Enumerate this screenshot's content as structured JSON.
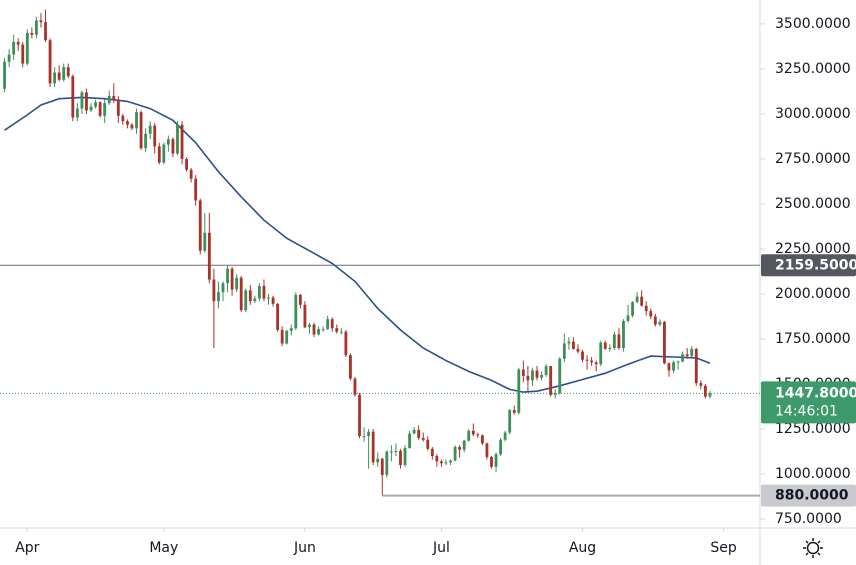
{
  "chart_data": {
    "type": "candlestick",
    "xlim": [
      -1,
      166
    ],
    "ylim": [
      700,
      3633
    ],
    "xticks": [
      {
        "value": 5,
        "label": "Apr"
      },
      {
        "value": 35,
        "label": "May"
      },
      {
        "value": 66,
        "label": "Jun"
      },
      {
        "value": 96,
        "label": "Jul"
      },
      {
        "value": 127,
        "label": "Aug"
      },
      {
        "value": 158,
        "label": "Sep"
      }
    ],
    "yticks": [
      {
        "value": 750,
        "label": "750.0000"
      },
      {
        "value": 1000,
        "label": "1000.0000"
      },
      {
        "value": 1250,
        "label": "1250.0000"
      },
      {
        "value": 1500,
        "label": "1500.0000"
      },
      {
        "value": 1750,
        "label": "1750.0000"
      },
      {
        "value": 2000,
        "label": "2000.0000"
      },
      {
        "value": 2250,
        "label": "2250.0000"
      },
      {
        "value": 2500,
        "label": "2500.0000"
      },
      {
        "value": 2750,
        "label": "2750.0000"
      },
      {
        "value": 3000,
        "label": "3000.0000"
      },
      {
        "value": 3250,
        "label": "3250.0000"
      },
      {
        "value": 3500,
        "label": "3500.0000"
      }
    ],
    "up_color": "#3d8f57",
    "down_color": "#a8322c",
    "open": [
      3140,
      3290,
      3330,
      3400,
      3385,
      3280,
      3450,
      3440,
      3520,
      3510,
      3410,
      3170,
      3230,
      3190,
      3260,
      3210,
      2980,
      3030,
      3120,
      3020,
      3040,
      3065,
      2990,
      3060,
      3100,
      3080,
      2990,
      2960,
      2940,
      2920,
      3010,
      2810,
      2890,
      2935,
      2820,
      2730,
      2830,
      2860,
      2780,
      2940,
      2750,
      2690,
      2640,
      2520,
      2240,
      2340,
      2080,
      1960,
      2010,
      2060,
      2140,
      2025,
      2090,
      1910,
      2020,
      1960,
      1975,
      2045,
      1975,
      1980,
      1945,
      1800,
      1725,
      1795,
      1810,
      1995,
      1940,
      1815,
      1830,
      1775,
      1805,
      1805,
      1860,
      1810,
      1790,
      1790,
      1660,
      1530,
      1440,
      1210,
      1210,
      1235,
      1065,
      1085,
      995,
      1125,
      1125,
      1128,
      1050,
      1145,
      1225,
      1245,
      1200,
      1190,
      1140,
      1100,
      1070,
      1060,
      1065,
      1075,
      1150,
      1135,
      1185,
      1240,
      1220,
      1215,
      1170,
      1095,
      1040,
      1110,
      1190,
      1230,
      1355,
      1340,
      1580,
      1545,
      1520,
      1575,
      1535,
      1550,
      1600,
      1440,
      1450,
      1640,
      1725,
      1735,
      1695,
      1680,
      1635,
      1630,
      1620,
      1610,
      1730,
      1695,
      1700,
      1775,
      1700,
      1850,
      1880,
      1955,
      1985,
      1935,
      1905,
      1875,
      1830,
      1845,
      1615,
      1575,
      1620,
      1625,
      1665,
      1655,
      1695,
      1505,
      1490,
      1430
    ],
    "high": [
      3310,
      3360,
      3440,
      3420,
      3400,
      3470,
      3480,
      3540,
      3560,
      3580,
      3420,
      3260,
      3270,
      3280,
      3280,
      3220,
      3060,
      3130,
      3140,
      3060,
      3080,
      3070,
      3080,
      3130,
      3170,
      3100,
      3000,
      2970,
      2950,
      3030,
      3020,
      2920,
      2960,
      2950,
      2840,
      2840,
      2880,
      2870,
      2960,
      2960,
      2760,
      2700,
      2660,
      2530,
      2450,
      2450,
      2140,
      2070,
      2070,
      2160,
      2150,
      2110,
      2100,
      2030,
      2050,
      1990,
      2060,
      2080,
      2000,
      1990,
      1950,
      1820,
      1800,
      1830,
      2010,
      2000,
      1960,
      1840,
      1840,
      1820,
      1820,
      1880,
      1870,
      1830,
      1810,
      1800,
      1670,
      1540,
      1450,
      1260,
      1250,
      1250,
      1120,
      1090,
      1130,
      1160,
      1170,
      1140,
      1160,
      1240,
      1260,
      1270,
      1230,
      1210,
      1150,
      1110,
      1080,
      1080,
      1080,
      1160,
      1160,
      1190,
      1250,
      1280,
      1230,
      1220,
      1175,
      1100,
      1120,
      1200,
      1240,
      1360,
      1380,
      1590,
      1630,
      1600,
      1590,
      1600,
      1570,
      1610,
      1600,
      1470,
      1650,
      1780,
      1760,
      1760,
      1720,
      1690,
      1660,
      1650,
      1630,
      1740,
      1740,
      1720,
      1790,
      1810,
      1860,
      1940,
      1960,
      2010,
      2020,
      1960,
      1920,
      1890,
      1860,
      1850,
      1620,
      1630,
      1630,
      1680,
      1700,
      1710,
      1700,
      1520,
      1500,
      1460
    ],
    "low": [
      3120,
      3260,
      3300,
      3350,
      3260,
      3270,
      3420,
      3420,
      3480,
      3400,
      3150,
      3150,
      3180,
      3180,
      3200,
      2960,
      2960,
      3000,
      3000,
      3010,
      3030,
      2980,
      2950,
      3050,
      3060,
      2950,
      2940,
      2920,
      2910,
      2890,
      2800,
      2790,
      2860,
      2780,
      2720,
      2720,
      2790,
      2760,
      2770,
      2720,
      2680,
      2620,
      2490,
      2220,
      2230,
      2060,
      1700,
      1920,
      1960,
      2010,
      1990,
      2010,
      1900,
      1900,
      1940,
      1950,
      1960,
      1960,
      1940,
      1930,
      1790,
      1710,
      1720,
      1770,
      1800,
      1920,
      1810,
      1780,
      1760,
      1770,
      1790,
      1800,
      1790,
      1780,
      1775,
      1650,
      1520,
      1430,
      1200,
      1180,
      1030,
      1050,
      1040,
      880,
      980,
      1070,
      1100,
      1030,
      1040,
      1140,
      1220,
      1190,
      1180,
      1130,
      1080,
      1040,
      1040,
      1050,
      1050,
      1070,
      1090,
      1120,
      1180,
      1210,
      1200,
      1160,
      1080,
      1030,
      1010,
      1100,
      1180,
      1220,
      1330,
      1330,
      1510,
      1460,
      1490,
      1520,
      1520,
      1540,
      1430,
      1420,
      1440,
      1620,
      1690,
      1690,
      1670,
      1620,
      1580,
      1600,
      1570,
      1600,
      1690,
      1680,
      1690,
      1690,
      1680,
      1840,
      1870,
      1950,
      1930,
      1880,
      1860,
      1820,
      1820,
      1610,
      1540,
      1560,
      1580,
      1620,
      1640,
      1650,
      1490,
      1470,
      1420,
      1420
    ],
    "close": [
      3290,
      3330,
      3400,
      3385,
      3280,
      3450,
      3440,
      3520,
      3510,
      3410,
      3170,
      3230,
      3190,
      3260,
      3210,
      2980,
      3030,
      3120,
      3020,
      3040,
      3065,
      2990,
      3060,
      3100,
      3080,
      2990,
      2960,
      2940,
      2920,
      3010,
      2810,
      2890,
      2935,
      2820,
      2730,
      2830,
      2860,
      2780,
      2940,
      2750,
      2690,
      2640,
      2520,
      2240,
      2340,
      2080,
      1960,
      2010,
      2060,
      2140,
      2025,
      2090,
      1910,
      2020,
      1960,
      1975,
      2045,
      1975,
      1980,
      1945,
      1800,
      1725,
      1795,
      1810,
      1995,
      1940,
      1815,
      1830,
      1775,
      1805,
      1805,
      1860,
      1810,
      1790,
      1790,
      1660,
      1530,
      1440,
      1210,
      1210,
      1235,
      1065,
      1085,
      995,
      1125,
      1125,
      1128,
      1050,
      1145,
      1225,
      1245,
      1200,
      1190,
      1140,
      1100,
      1070,
      1060,
      1065,
      1075,
      1150,
      1135,
      1185,
      1240,
      1220,
      1215,
      1170,
      1095,
      1040,
      1110,
      1190,
      1230,
      1355,
      1340,
      1580,
      1545,
      1520,
      1575,
      1535,
      1550,
      1600,
      1440,
      1450,
      1640,
      1725,
      1735,
      1695,
      1680,
      1635,
      1630,
      1620,
      1610,
      1730,
      1695,
      1700,
      1775,
      1700,
      1850,
      1880,
      1955,
      1985,
      1935,
      1905,
      1875,
      1830,
      1845,
      1615,
      1575,
      1620,
      1625,
      1665,
      1655,
      1695,
      1505,
      1490,
      1430,
      1447.8
    ],
    "moving_average": {
      "color": "#2c4f8f",
      "x": [
        0,
        5,
        8,
        12,
        17,
        22,
        27,
        32,
        37,
        42,
        47,
        52,
        57,
        62,
        67,
        72,
        77,
        82,
        87,
        92,
        97,
        102,
        107,
        111,
        114,
        117,
        122,
        127,
        132,
        137,
        142,
        147,
        152,
        155
      ],
      "values": [
        2910,
        2995,
        3050,
        3085,
        3092,
        3085,
        3070,
        3030,
        2965,
        2840,
        2680,
        2540,
        2410,
        2310,
        2240,
        2170,
        2070,
        1920,
        1800,
        1700,
        1630,
        1570,
        1520,
        1470,
        1455,
        1460,
        1490,
        1525,
        1560,
        1610,
        1655,
        1650,
        1645,
        1615
      ]
    },
    "levels": [
      {
        "value": 2159.5,
        "label": "2159.5000"
      },
      {
        "value": 880,
        "label": "880.0000",
        "x_start": 83
      }
    ],
    "last_price": {
      "value": 1447.8,
      "label": "1447.8000",
      "countdown": "14:46:01",
      "color": "#3d9a6a"
    }
  }
}
